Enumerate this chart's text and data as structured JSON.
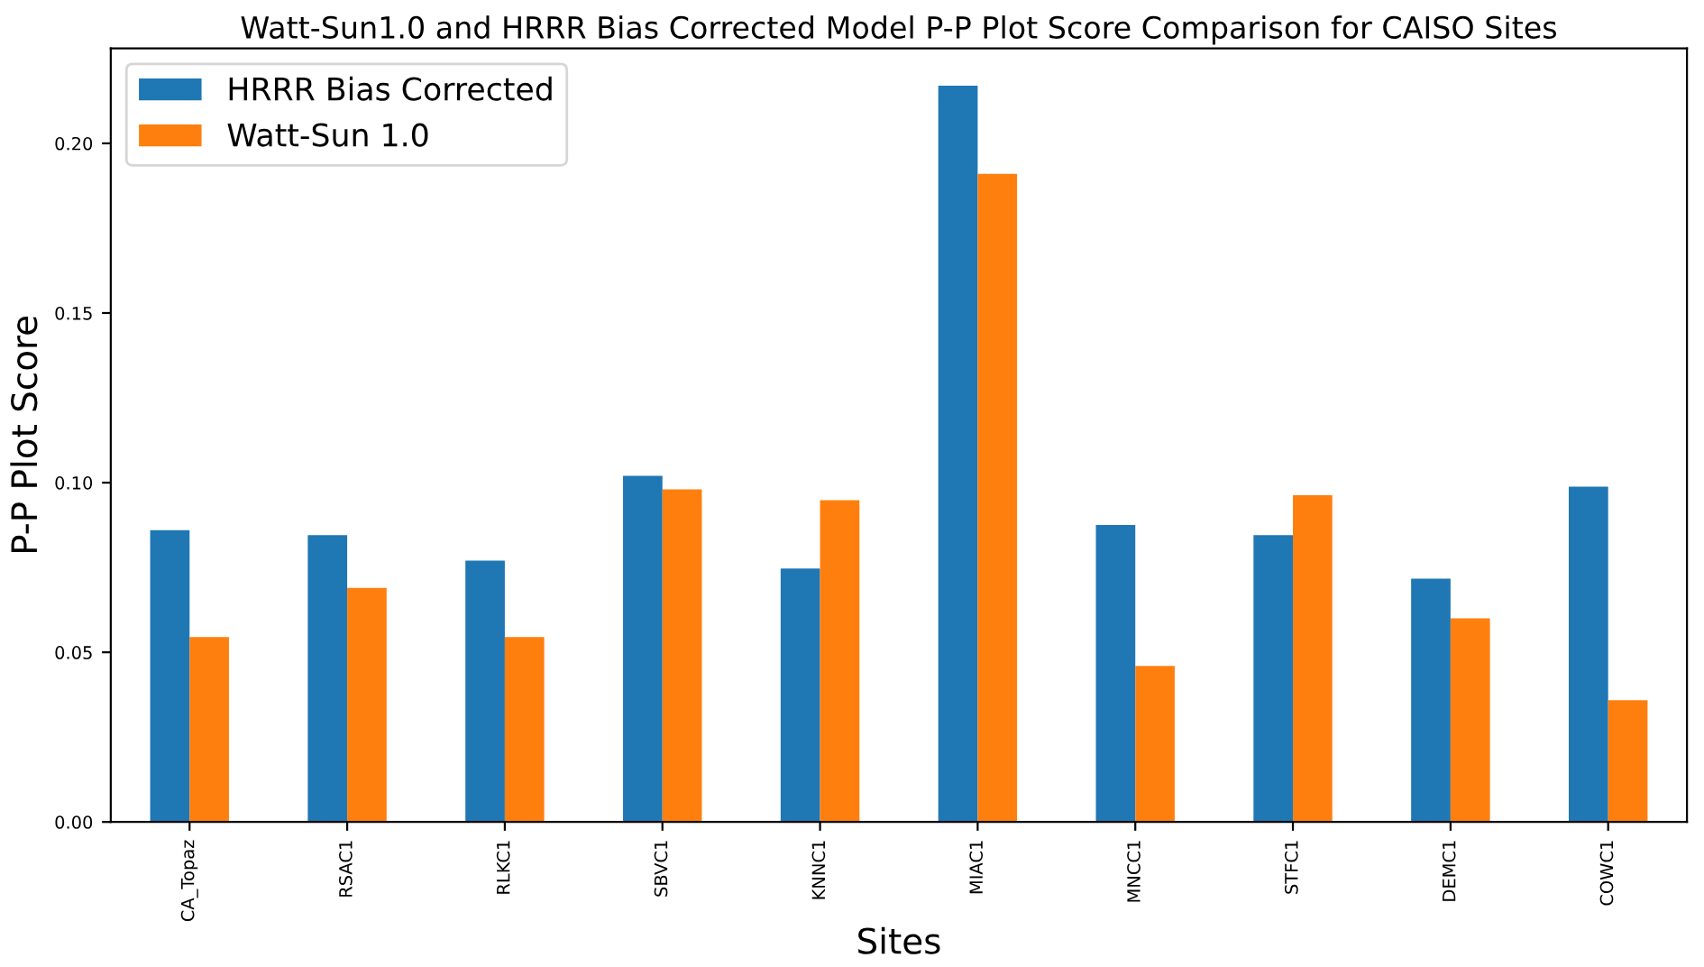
{
  "chart_data": {
    "type": "bar",
    "title": "Watt-Sun1.0 and HRRR Bias Corrected Model P-P Plot Score Comparison for CAISO Sites",
    "xlabel": "Sites",
    "ylabel": "P-P Plot Score",
    "categories": [
      "CA_Topaz",
      "RSAC1",
      "RLKC1",
      "SBVC1",
      "KNNC1",
      "MIAC1",
      "MNCC1",
      "STFC1",
      "DEMC1",
      "COWC1"
    ],
    "series": [
      {
        "name": "HRRR Bias Corrected",
        "color": "#1f77b4",
        "values": [
          0.086,
          0.0845,
          0.077,
          0.102,
          0.0747,
          0.217,
          0.0875,
          0.0845,
          0.0717,
          0.0988
        ]
      },
      {
        "name": "Watt-Sun 1.0",
        "color": "#ff7f0e",
        "values": [
          0.0545,
          0.069,
          0.0545,
          0.098,
          0.0948,
          0.191,
          0.046,
          0.0963,
          0.06,
          0.0359
        ]
      }
    ],
    "ylim": [
      0,
      0.228
    ],
    "yticks": [
      {
        "value": 0,
        "label": "0.00"
      },
      {
        "value": 0.05,
        "label": "0.05"
      },
      {
        "value": 0.1,
        "label": "0.10"
      },
      {
        "value": 0.15,
        "label": "0.15"
      },
      {
        "value": 0.2,
        "label": "0.20"
      }
    ],
    "legend": "top left",
    "grid": false
  }
}
